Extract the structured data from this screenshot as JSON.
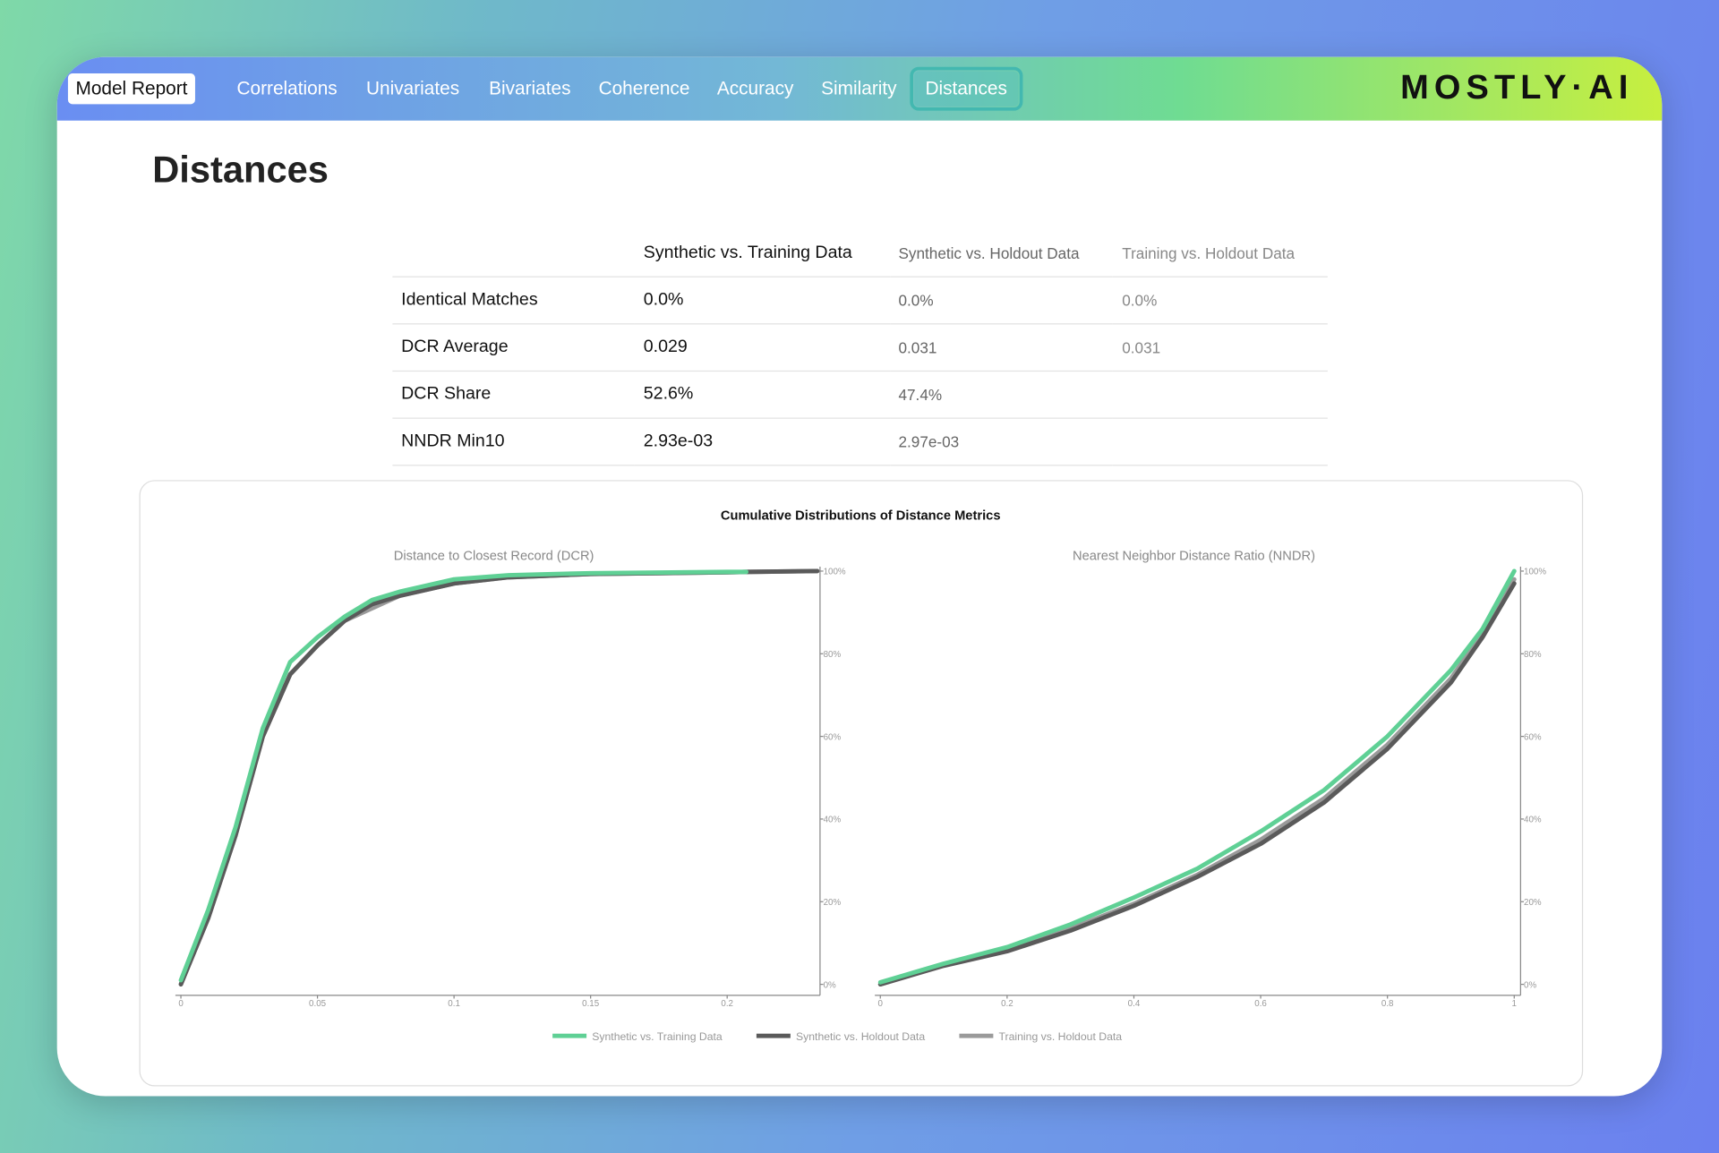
{
  "nav": {
    "tabs": [
      "Model Report",
      "Correlations",
      "Univariates",
      "Bivariates",
      "Coherence",
      "Accuracy",
      "Similarity",
      "Distances"
    ],
    "logo": "MOSTLY·AI"
  },
  "page_title": "Distances",
  "table": {
    "header": [
      "Synthetic vs. Training Data",
      "Synthetic vs. Holdout Data",
      "Training vs. Holdout Data"
    ],
    "rows": [
      {
        "label": "Identical Matches",
        "values": [
          "0.0%",
          "0.0%",
          "0.0%"
        ]
      },
      {
        "label": "DCR Average",
        "values": [
          "0.029",
          "0.031",
          "0.031"
        ]
      },
      {
        "label": "DCR Share",
        "values": [
          "52.6%",
          "47.4%"
        ]
      },
      {
        "label": "NNDR Min10",
        "values": [
          "2.93e-03",
          "2.97e-03"
        ]
      }
    ]
  },
  "figure_title": "Cumulative Distributions of Distance Metrics",
  "chart_data": [
    {
      "type": "line",
      "title": "Distance to Closest Record (DCR)",
      "x": [
        0,
        0.01,
        0.02,
        0.03,
        0.04,
        0.05,
        0.06,
        0.07,
        0.08,
        0.1,
        0.12,
        0.15,
        0.2,
        0.207,
        0.233
      ],
      "xlim": [
        0,
        0.234
      ],
      "xticks": [
        0,
        0.05,
        0.1,
        0.15,
        0.2
      ],
      "ylim": [
        0,
        100
      ],
      "yticks": [
        {
          "value": 0,
          "label": "0%"
        },
        {
          "value": 20,
          "label": "20%"
        },
        {
          "value": 40,
          "label": "40%"
        },
        {
          "value": 60,
          "label": "60%"
        },
        {
          "value": 80,
          "label": "80%"
        },
        {
          "value": 100,
          "label": "100%"
        }
      ],
      "series": [
        {
          "name": "Training vs. Holdout Data",
          "color": "#9a9a9a",
          "values": [
            0,
            16,
            36,
            60,
            75,
            82,
            88,
            91,
            94,
            97,
            98.5,
            99.3,
            99.7,
            99.8,
            100
          ]
        },
        {
          "name": "Synthetic vs. Holdout Data",
          "color": "#5a5a5a",
          "values": [
            0,
            16,
            36,
            60,
            75,
            82,
            88,
            92,
            94,
            97,
            98.5,
            99.3,
            99.7,
            99.8,
            100
          ]
        },
        {
          "name": "Synthetic vs. Training Data",
          "color": "#5fd095",
          "values": [
            1,
            18,
            38,
            62,
            78,
            84,
            89,
            93,
            95,
            98,
            99,
            99.5,
            99.8,
            99.8,
            null
          ]
        }
      ]
    },
    {
      "type": "line",
      "title": "Nearest Neighbor Distance Ratio (NNDR)",
      "x": [
        0,
        0.1,
        0.2,
        0.3,
        0.4,
        0.5,
        0.6,
        0.7,
        0.8,
        0.9,
        0.95,
        1
      ],
      "xlim": [
        0,
        1.01
      ],
      "xticks": [
        0,
        0.2,
        0.4,
        0.6,
        0.8,
        1
      ],
      "ylim": [
        0,
        100
      ],
      "yticks": [
        {
          "value": 0,
          "label": "0%"
        },
        {
          "value": 20,
          "label": "20%"
        },
        {
          "value": 40,
          "label": "40%"
        },
        {
          "value": 60,
          "label": "60%"
        },
        {
          "value": 80,
          "label": "80%"
        },
        {
          "value": 100,
          "label": "100%"
        }
      ],
      "series": [
        {
          "name": "Training vs. Holdout Data",
          "color": "#9a9a9a",
          "values": [
            0,
            4.7,
            8.5,
            13.5,
            19.5,
            26.5,
            35,
            45,
            58,
            74,
            85,
            98
          ]
        },
        {
          "name": "Synthetic vs. Holdout Data",
          "color": "#5a5a5a",
          "values": [
            0,
            4.5,
            8,
            13,
            19,
            26,
            34,
            44,
            57,
            73,
            84,
            97
          ]
        },
        {
          "name": "Synthetic vs. Training Data",
          "color": "#5fd095",
          "values": [
            0.5,
            5,
            9,
            14.5,
            21,
            28,
            37,
            47,
            60,
            76,
            86,
            100
          ]
        }
      ]
    }
  ]
}
